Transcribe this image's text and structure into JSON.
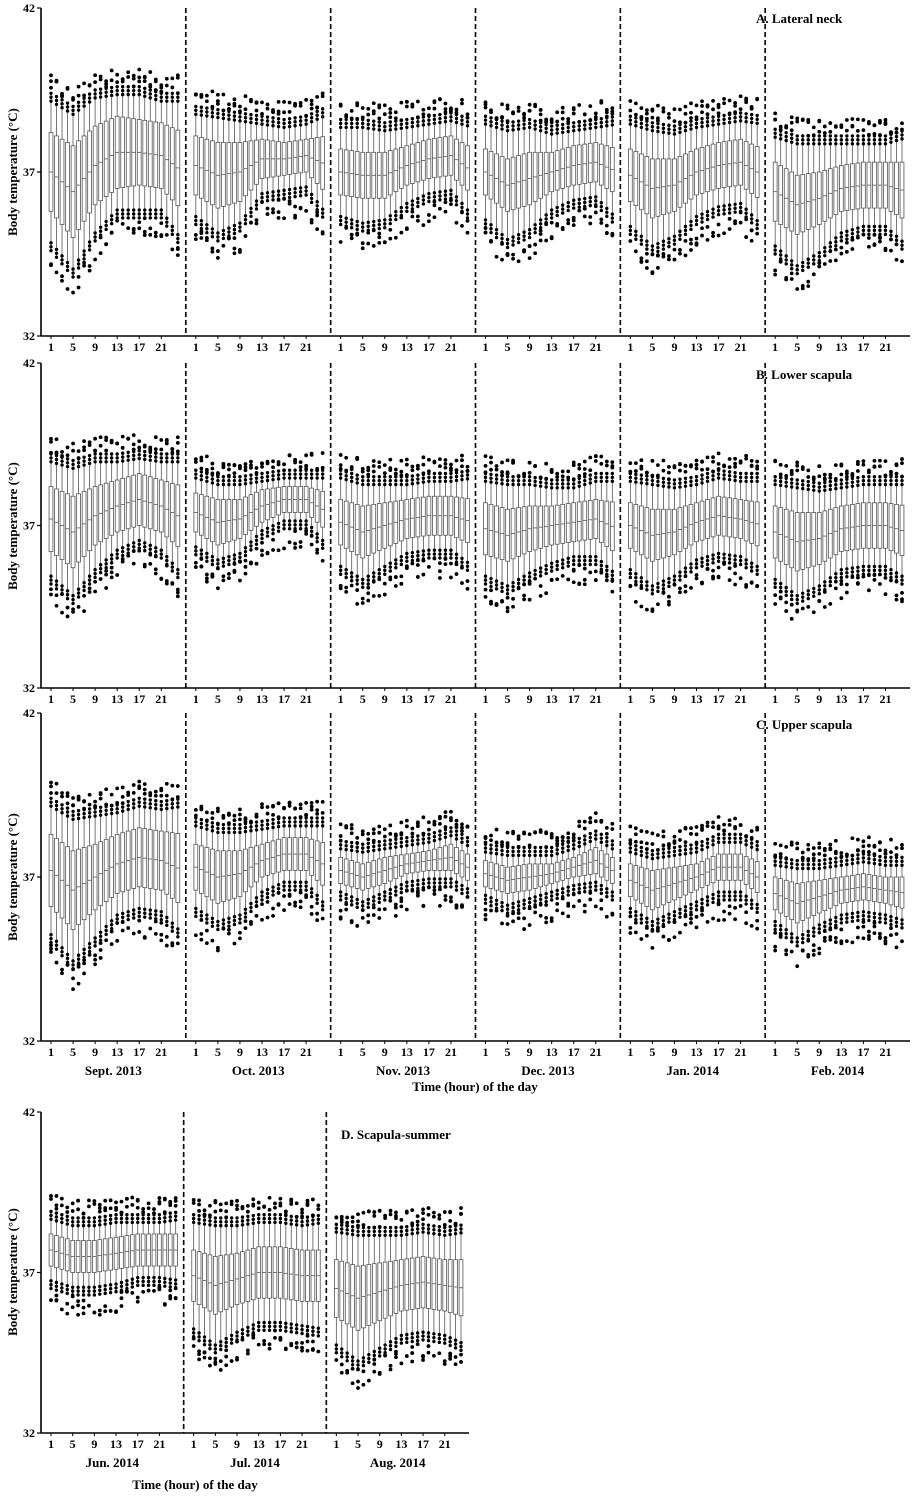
{
  "figure": {
    "y_axis_label": "Body temperature (°C)",
    "x_axis_label": "Time (hour) of the day",
    "hour_ticks": [
      "1",
      "5",
      "9",
      "13",
      "17",
      "21"
    ],
    "colors": {
      "axis": "#000000",
      "box": "#555555",
      "outlier": "#000000",
      "divider": "#000000",
      "background": "#ffffff"
    }
  },
  "chart_data": [
    {
      "type": "box",
      "title": "A. Lateral neck",
      "ylabel": "Body temperature (°C)",
      "xlabel": "",
      "ylim": [
        32,
        42
      ],
      "yticks": [
        32,
        37,
        42
      ],
      "hours": [
        1,
        5,
        9,
        13,
        17,
        21
      ],
      "month_labels": [],
      "series": [
        {
          "month": "Sept. 2013",
          "median": [
            37.0,
            36.4,
            37.2,
            37.6,
            37.6,
            37.5
          ],
          "iqr_half": [
            1.2,
            1.4,
            1.2,
            1.1,
            1.0,
            1.0
          ],
          "whisker_half": [
            2.4,
            2.6,
            2.3,
            2.0,
            2.0,
            1.9
          ]
        },
        {
          "month": "Oct. 2013",
          "median": [
            37.2,
            36.9,
            37.0,
            37.4,
            37.4,
            37.5
          ],
          "iqr_half": [
            0.9,
            1.0,
            0.9,
            0.6,
            0.5,
            0.5
          ],
          "whisker_half": [
            1.8,
            2.0,
            1.8,
            1.3,
            1.2,
            1.2
          ]
        },
        {
          "month": "Nov. 2013",
          "median": [
            37.0,
            36.9,
            36.9,
            37.2,
            37.4,
            37.5
          ],
          "iqr_half": [
            0.7,
            0.7,
            0.7,
            0.6,
            0.6,
            0.6
          ],
          "whisker_half": [
            1.6,
            1.7,
            1.6,
            1.4,
            1.3,
            1.3
          ]
        },
        {
          "month": "Dec. 2013",
          "median": [
            37.0,
            36.6,
            36.8,
            37.0,
            37.2,
            37.3
          ],
          "iqr_half": [
            0.7,
            0.8,
            0.8,
            0.6,
            0.6,
            0.6
          ],
          "whisker_half": [
            1.7,
            1.9,
            1.8,
            1.4,
            1.3,
            1.3
          ]
        },
        {
          "month": "Jan. 2014",
          "median": [
            36.9,
            36.5,
            36.6,
            37.0,
            37.2,
            37.3
          ],
          "iqr_half": [
            0.8,
            0.9,
            0.8,
            0.7,
            0.7,
            0.7
          ],
          "whisker_half": [
            1.8,
            2.0,
            1.8,
            1.6,
            1.5,
            1.5
          ]
        },
        {
          "month": "Feb. 2014",
          "median": [
            36.4,
            36.0,
            36.2,
            36.5,
            36.6,
            36.6
          ],
          "iqr_half": [
            0.9,
            0.9,
            0.8,
            0.7,
            0.7,
            0.7
          ],
          "whisker_half": [
            1.9,
            2.1,
            1.9,
            1.6,
            1.5,
            1.5
          ]
        }
      ]
    },
    {
      "type": "box",
      "title": "B. Lower scapula",
      "ylabel": "Body temperature (°C)",
      "xlabel": "",
      "ylim": [
        32,
        42
      ],
      "yticks": [
        32,
        37,
        42
      ],
      "hours": [
        1,
        5,
        9,
        13,
        17,
        21
      ],
      "month_labels": [],
      "series": [
        {
          "month": "Sept. 2013",
          "median": [
            37.2,
            36.8,
            37.3,
            37.6,
            37.8,
            37.6
          ],
          "iqr_half": [
            1.0,
            1.1,
            0.9,
            0.8,
            0.8,
            0.8
          ],
          "whisker_half": [
            2.0,
            2.2,
            1.9,
            1.6,
            1.5,
            1.6
          ]
        },
        {
          "month": "Oct. 2013",
          "median": [
            37.4,
            37.1,
            37.2,
            37.6,
            37.8,
            37.8
          ],
          "iqr_half": [
            0.6,
            0.7,
            0.6,
            0.5,
            0.4,
            0.4
          ],
          "whisker_half": [
            1.3,
            1.4,
            1.3,
            1.0,
            0.9,
            0.9
          ]
        },
        {
          "month": "Nov. 2013",
          "median": [
            37.1,
            36.8,
            37.0,
            37.2,
            37.3,
            37.3
          ],
          "iqr_half": [
            0.7,
            0.8,
            0.7,
            0.6,
            0.6,
            0.6
          ],
          "whisker_half": [
            1.6,
            1.7,
            1.5,
            1.3,
            1.3,
            1.3
          ]
        },
        {
          "month": "Dec. 2013",
          "median": [
            36.9,
            36.7,
            36.9,
            37.0,
            37.1,
            37.2
          ],
          "iqr_half": [
            0.8,
            0.8,
            0.7,
            0.6,
            0.6,
            0.6
          ],
          "whisker_half": [
            1.7,
            1.8,
            1.6,
            1.4,
            1.3,
            1.4
          ]
        },
        {
          "month": "Jan. 2014",
          "median": [
            37.0,
            36.7,
            36.8,
            37.1,
            37.3,
            37.2
          ],
          "iqr_half": [
            0.7,
            0.8,
            0.7,
            0.6,
            0.6,
            0.6
          ],
          "whisker_half": [
            1.6,
            1.8,
            1.6,
            1.4,
            1.4,
            1.4
          ]
        },
        {
          "month": "Feb. 2014",
          "median": [
            36.8,
            36.5,
            36.6,
            36.9,
            37.0,
            37.0
          ],
          "iqr_half": [
            0.8,
            0.9,
            0.8,
            0.7,
            0.7,
            0.7
          ],
          "whisker_half": [
            1.7,
            1.9,
            1.7,
            1.5,
            1.5,
            1.5
          ]
        }
      ]
    },
    {
      "type": "box",
      "title": "C. Upper scapula",
      "ylabel": "Body temperature (°C)",
      "xlabel": "Time (hour) of the day",
      "ylim": [
        32,
        42
      ],
      "yticks": [
        32,
        37,
        42
      ],
      "hours": [
        1,
        5,
        9,
        13,
        17,
        21
      ],
      "month_labels": [
        "Sept. 2013",
        "Oct. 2013",
        "Nov. 2013",
        "Dec. 2013",
        "Jan. 2014",
        "Feb. 2014"
      ],
      "series": [
        {
          "month": "Sept. 2013",
          "median": [
            37.2,
            36.6,
            37.0,
            37.4,
            37.6,
            37.5
          ],
          "iqr_half": [
            1.1,
            1.2,
            1.0,
            0.9,
            0.9,
            0.9
          ],
          "whisker_half": [
            2.2,
            2.4,
            2.1,
            1.8,
            1.8,
            1.8
          ]
        },
        {
          "month": "Oct. 2013",
          "median": [
            37.3,
            37.0,
            37.1,
            37.5,
            37.7,
            37.7
          ],
          "iqr_half": [
            0.7,
            0.8,
            0.7,
            0.5,
            0.5,
            0.5
          ],
          "whisker_half": [
            1.5,
            1.6,
            1.5,
            1.2,
            1.1,
            1.1
          ]
        },
        {
          "month": "Nov. 2013",
          "median": [
            37.2,
            37.0,
            37.2,
            37.4,
            37.5,
            37.6
          ],
          "iqr_half": [
            0.4,
            0.4,
            0.4,
            0.3,
            0.3,
            0.4
          ],
          "whisker_half": [
            0.9,
            1.0,
            0.9,
            0.8,
            0.8,
            0.9
          ]
        },
        {
          "month": "Dec. 2013",
          "median": [
            37.1,
            36.9,
            37.0,
            37.1,
            37.3,
            37.5
          ],
          "iqr_half": [
            0.4,
            0.4,
            0.4,
            0.3,
            0.3,
            0.4
          ],
          "whisker_half": [
            0.9,
            1.0,
            0.9,
            0.8,
            0.8,
            0.9
          ]
        },
        {
          "month": "Jan. 2014",
          "median": [
            36.9,
            36.6,
            36.8,
            37.0,
            37.3,
            37.3
          ],
          "iqr_half": [
            0.5,
            0.6,
            0.5,
            0.4,
            0.4,
            0.4
          ],
          "whisker_half": [
            1.1,
            1.2,
            1.1,
            1.0,
            1.0,
            1.0
          ]
        },
        {
          "month": "Feb. 2014",
          "median": [
            36.5,
            36.2,
            36.4,
            36.6,
            36.7,
            36.6
          ],
          "iqr_half": [
            0.5,
            0.6,
            0.5,
            0.4,
            0.4,
            0.4
          ],
          "whisker_half": [
            1.1,
            1.3,
            1.1,
            1.0,
            1.0,
            1.0
          ]
        }
      ]
    },
    {
      "type": "box",
      "title": "D. Scapula-summer",
      "ylabel": "Body temperature (°C)",
      "xlabel": "Time (hour) of the day",
      "ylim": [
        32,
        42
      ],
      "yticks": [
        32,
        37,
        42
      ],
      "hours": [
        1,
        5,
        9,
        13,
        17,
        21
      ],
      "month_labels": [
        "Jun. 2014",
        "Jul. 2014",
        "Aug. 2014"
      ],
      "series": [
        {
          "month": "Jun. 2014",
          "median": [
            37.7,
            37.5,
            37.5,
            37.6,
            37.7,
            37.7
          ],
          "iqr_half": [
            0.5,
            0.5,
            0.5,
            0.5,
            0.5,
            0.5
          ],
          "whisker_half": [
            1.2,
            1.2,
            1.2,
            1.2,
            1.1,
            1.1
          ]
        },
        {
          "month": "Jul. 2014",
          "median": [
            36.9,
            36.6,
            36.8,
            37.0,
            37.0,
            36.9
          ],
          "iqr_half": [
            0.8,
            0.9,
            0.8,
            0.8,
            0.8,
            0.8
          ],
          "whisker_half": [
            1.9,
            2.1,
            1.9,
            1.8,
            1.8,
            1.8
          ]
        },
        {
          "month": "Aug. 2014",
          "median": [
            36.5,
            36.2,
            36.4,
            36.6,
            36.7,
            36.6
          ],
          "iqr_half": [
            0.9,
            1.0,
            0.9,
            0.8,
            0.8,
            0.8
          ],
          "whisker_half": [
            2.0,
            2.2,
            2.0,
            1.8,
            1.8,
            1.8
          ]
        }
      ]
    }
  ]
}
